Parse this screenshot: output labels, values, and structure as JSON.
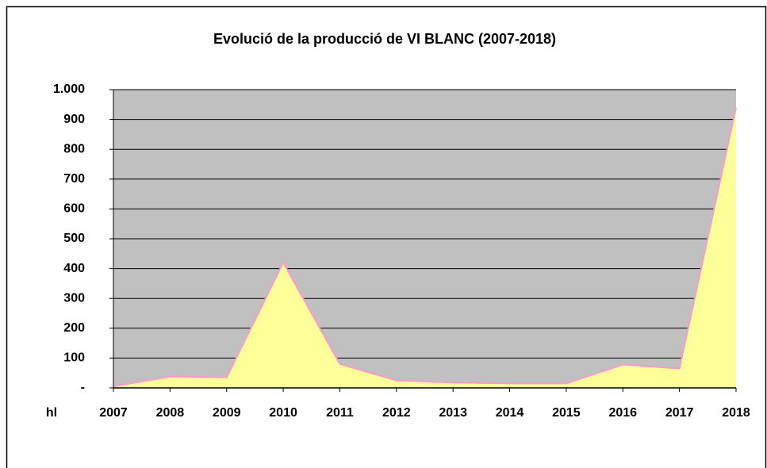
{
  "chart_data": {
    "type": "area",
    "title": "Evolució de la producció de VI BLANC (2007-2018)",
    "y_label": "hl",
    "categories": [
      "2007",
      "2008",
      "2009",
      "2010",
      "2011",
      "2012",
      "2013",
      "2014",
      "2015",
      "2016",
      "2017",
      "2018"
    ],
    "series": [
      {
        "name": "VI BLANC",
        "color": "#ffff99",
        "line_color": "#ff99cc",
        "values": [
          5,
          38,
          35,
          420,
          80,
          25,
          18,
          15,
          15,
          78,
          65,
          940
        ]
      }
    ],
    "ylim": [
      0,
      1000
    ],
    "yticks": [
      {
        "value": 0,
        "label": "-"
      },
      100,
      200,
      300,
      400,
      500,
      600,
      700,
      800,
      900,
      {
        "value": 1000,
        "label": "1.000"
      }
    ],
    "grid": true,
    "plot_background": "#c0c0c0"
  }
}
